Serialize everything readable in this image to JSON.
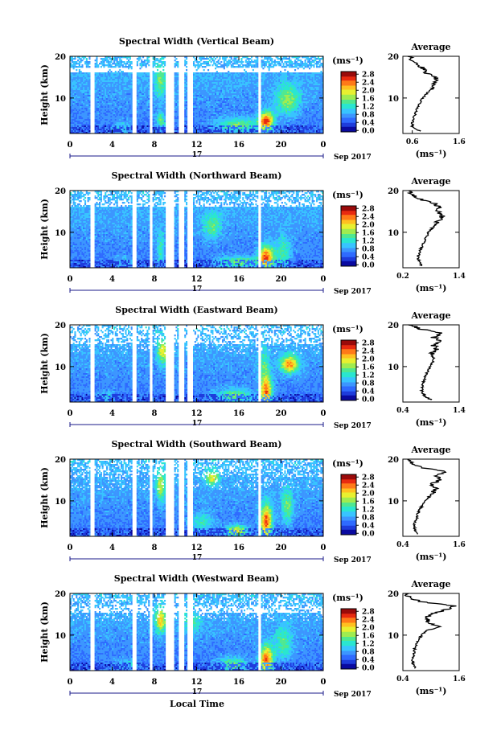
{
  "figure": {
    "xlabel": "Local Time",
    "colorbar_unit": "(ms⁻¹)",
    "colorbar_ticks": [
      "2.8",
      "2.4",
      "2.0",
      "1.6",
      "1.2",
      "0.8",
      "0.4",
      "0.0"
    ],
    "day_label": "17",
    "month_label": "Sep 2017",
    "average_title": "Average",
    "average_unit": "(ms⁻¹)",
    "colormap": [
      "#0a0aa0",
      "#1e3cdc",
      "#2f6bff",
      "#3c96ff",
      "#38c4ff",
      "#2ae6d0",
      "#50e890",
      "#a0ec50",
      "#e8f030",
      "#ffc020",
      "#ff7a18",
      "#e82a10",
      "#9a0a0a"
    ]
  },
  "chart_data": [
    {
      "type": "heatmap",
      "title": "Spectral Width (Vertical Beam)",
      "ylabel": "Height (km)",
      "x_ticks": [
        "0",
        "4",
        "8",
        "12",
        "16",
        "20",
        "0"
      ],
      "y_ticks": [
        "20",
        "10"
      ],
      "xlim": [
        0,
        24
      ],
      "ylim": [
        1.5,
        20
      ],
      "value_range": [
        0,
        3.0
      ],
      "average_profile": {
        "xlim": [
          0.4,
          1.6
        ],
        "x_ticks": [
          "0.6",
          "1.6"
        ],
        "height": [
          2,
          3,
          4,
          5,
          6,
          7,
          8,
          9,
          10,
          11,
          12,
          13,
          14,
          15,
          16,
          17,
          18,
          19,
          20
        ],
        "values": [
          0.78,
          0.6,
          0.6,
          0.62,
          0.66,
          0.68,
          0.72,
          0.78,
          0.82,
          0.9,
          1.0,
          1.05,
          1.1,
          1.12,
          0.9,
          0.85,
          0.7,
          0.6,
          0.55
        ]
      }
    },
    {
      "type": "heatmap",
      "title": "Spectral Width (Northward Beam)",
      "ylabel": "Height (km)",
      "x_ticks": [
        "0",
        "4",
        "8",
        "12",
        "16",
        "20",
        "0"
      ],
      "y_ticks": [
        "20",
        "10"
      ],
      "xlim": [
        0,
        24
      ],
      "ylim": [
        1.5,
        20
      ],
      "value_range": [
        0,
        3.0
      ],
      "average_profile": {
        "xlim": [
          0.2,
          1.4
        ],
        "x_ticks": [
          "0.2",
          "1.4"
        ],
        "height": [
          2,
          3,
          4,
          5,
          6,
          7,
          8,
          9,
          10,
          11,
          12,
          13,
          14,
          15,
          16,
          17,
          18,
          19,
          20
        ],
        "values": [
          0.6,
          0.55,
          0.52,
          0.55,
          0.58,
          0.62,
          0.66,
          0.7,
          0.75,
          0.82,
          0.9,
          0.98,
          1.05,
          0.95,
          1.0,
          0.85,
          0.55,
          0.4,
          0.35
        ]
      }
    },
    {
      "type": "heatmap",
      "title": "Spectral Width (Eastward Beam)",
      "ylabel": "Height (km)",
      "x_ticks": [
        "0",
        "4",
        "8",
        "12",
        "16",
        "20",
        "0"
      ],
      "y_ticks": [
        "20",
        "10"
      ],
      "xlim": [
        0,
        24
      ],
      "ylim": [
        1.5,
        20
      ],
      "value_range": [
        0,
        3.0
      ],
      "average_profile": {
        "xlim": [
          0.4,
          1.4
        ],
        "x_ticks": [
          "0.4",
          "1.4"
        ],
        "height": [
          2,
          3,
          4,
          5,
          6,
          7,
          8,
          9,
          10,
          11,
          12,
          13,
          14,
          15,
          16,
          17,
          18,
          19,
          20
        ],
        "values": [
          0.9,
          0.78,
          0.74,
          0.74,
          0.76,
          0.78,
          0.8,
          0.84,
          0.88,
          0.92,
          0.95,
          0.9,
          1.0,
          0.95,
          1.05,
          0.95,
          1.1,
          0.7,
          0.55
        ]
      }
    },
    {
      "type": "heatmap",
      "title": "Spectral Width (Southward Beam)",
      "ylabel": "Height (km)",
      "x_ticks": [
        "0",
        "4",
        "8",
        "12",
        "16",
        "20",
        "0"
      ],
      "y_ticks": [
        "20",
        "10"
      ],
      "xlim": [
        0,
        24
      ],
      "ylim": [
        1.5,
        20
      ],
      "value_range": [
        0,
        3.0
      ],
      "average_profile": {
        "xlim": [
          0.4,
          1.6
        ],
        "x_ticks": [
          "0.4",
          "1.6"
        ],
        "height": [
          2,
          3,
          4,
          5,
          6,
          7,
          8,
          9,
          10,
          11,
          12,
          13,
          14,
          15,
          16,
          17,
          18,
          19,
          20
        ],
        "values": [
          0.72,
          0.66,
          0.64,
          0.66,
          0.7,
          0.72,
          0.76,
          0.82,
          0.88,
          0.96,
          1.05,
          1.1,
          1.0,
          1.2,
          1.1,
          1.3,
          0.8,
          0.6,
          0.5
        ]
      }
    },
    {
      "type": "heatmap",
      "title": "Spectral Width (Westward Beam)",
      "ylabel": "Height (km)",
      "x_ticks": [
        "0",
        "4",
        "8",
        "12",
        "16",
        "20",
        "0"
      ],
      "y_ticks": [
        "20",
        "10"
      ],
      "xlim": [
        0,
        24
      ],
      "ylim": [
        1.5,
        20
      ],
      "value_range": [
        0,
        3.0
      ],
      "average_profile": {
        "xlim": [
          0.4,
          1.6
        ],
        "x_ticks": [
          "0.4",
          "1.6"
        ],
        "height": [
          2,
          3,
          4,
          5,
          6,
          7,
          8,
          9,
          10,
          11,
          12,
          13,
          14,
          15,
          16,
          17,
          18,
          19,
          20
        ],
        "values": [
          0.68,
          0.62,
          0.6,
          0.62,
          0.64,
          0.66,
          0.7,
          0.74,
          0.8,
          0.88,
          1.2,
          0.95,
          0.9,
          1.0,
          1.3,
          1.5,
          0.8,
          0.55,
          0.45
        ]
      }
    }
  ]
}
